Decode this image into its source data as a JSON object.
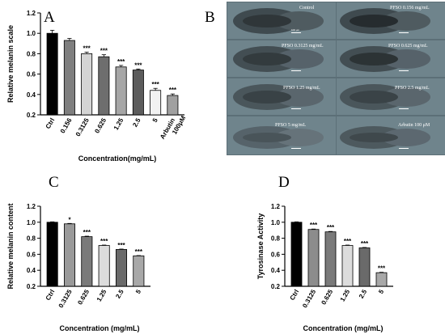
{
  "panels": {
    "A": "A",
    "B": "B",
    "C": "C",
    "D": "D"
  },
  "microscopy": {
    "labels": [
      "Control",
      "PFSO 0.156 mg/mL",
      "PFSO 0.3125 mg/mL",
      "PFSO 0.625 mg/mL",
      "PFSO 1.25 mg/mL",
      "PFSO 2.5 mg/mL",
      "PFSO 5 mg/mL",
      "Arbutin 100 μM"
    ],
    "scale_bar": "100 μm"
  },
  "chart_data": [
    {
      "type": "bar",
      "panel": "A",
      "categories": [
        "Ctrl",
        "0.156",
        "0.3125",
        "0.625",
        "1.25",
        "2.5",
        "5",
        "Arbutin 100μM"
      ],
      "values": [
        1.0,
        0.93,
        0.8,
        0.77,
        0.67,
        0.64,
        0.44,
        0.39
      ],
      "errors": [
        0.03,
        0.02,
        0.015,
        0.02,
        0.015,
        0.01,
        0.02,
        0.015
      ],
      "significance": [
        "",
        "",
        "***",
        "***",
        "***",
        "***",
        "***",
        "***"
      ],
      "colors": [
        "#000000",
        "#7f7f7f",
        "#d4d4d4",
        "#6e6e6e",
        "#a6a6a6",
        "#5c5c5c",
        "#f2f2f2",
        "#a0a0a0"
      ],
      "xlabel": "Concentration(mg/mL)",
      "ylabel": "Relative melanin scale",
      "ylim": [
        0.2,
        1.2
      ],
      "yticks": [
        "0.2",
        "0.4",
        "0.6",
        "0.8",
        "1.0",
        "1.2"
      ]
    },
    {
      "type": "bar",
      "panel": "C",
      "categories": [
        "Ctrl",
        "0.3125",
        "0.625",
        "1.25",
        "2.5",
        "5"
      ],
      "values": [
        1.0,
        0.98,
        0.82,
        0.71,
        0.66,
        0.58
      ],
      "errors": [
        0.005,
        0.005,
        0.006,
        0.005,
        0.005,
        0.004
      ],
      "significance": [
        "",
        "*",
        "***",
        "***",
        "***",
        "***"
      ],
      "colors": [
        "#000000",
        "#9a9a9a",
        "#7a7a7a",
        "#dcdcdc",
        "#6a6a6a",
        "#a8a8a8"
      ],
      "xlabel": "Concentration (mg/mL)",
      "ylabel": "Relative melanin content",
      "ylim": [
        0.2,
        1.2
      ],
      "yticks": [
        "0.2",
        "0.4",
        "0.6",
        "0.8",
        "1.0",
        "1.2"
      ]
    },
    {
      "type": "bar",
      "panel": "D",
      "categories": [
        "Ctrl",
        "0.3125",
        "0.625",
        "1.25",
        "2.5",
        "5"
      ],
      "values": [
        1.0,
        0.91,
        0.88,
        0.71,
        0.68,
        0.37
      ],
      "errors": [
        0.005,
        0.005,
        0.005,
        0.005,
        0.005,
        0.005
      ],
      "significance": [
        "",
        "***",
        "***",
        "***",
        "***",
        "***"
      ],
      "colors": [
        "#000000",
        "#8c8c8c",
        "#7a7a7a",
        "#dcdcdc",
        "#6a6a6a",
        "#a8a8a8"
      ],
      "xlabel": "Concentration (mg/mL)",
      "ylabel": "Tyrosinase Activity",
      "ylim": [
        0.2,
        1.2
      ],
      "yticks": [
        "0.2",
        "0.4",
        "0.6",
        "0.8",
        "1.0",
        "1.2"
      ]
    }
  ]
}
